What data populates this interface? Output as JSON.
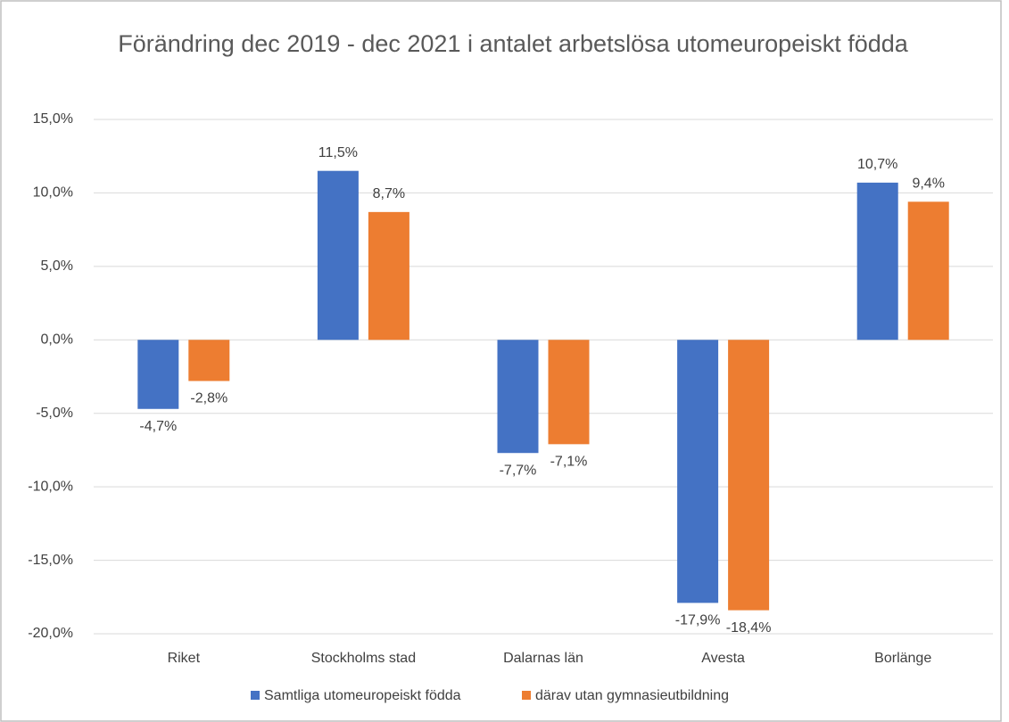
{
  "chart_data": {
    "type": "bar",
    "title": "Förändring dec 2019 - dec 2021 i antalet arbetslösa utomeuropeiskt födda",
    "categories": [
      "Riket",
      "Stockholms stad",
      "Dalarnas län",
      "Avesta",
      "Borlänge"
    ],
    "series": [
      {
        "name": "Samtliga utomeuropeiskt födda",
        "color": "#4472c4",
        "values": [
          -4.7,
          11.5,
          -7.7,
          -17.9,
          10.7
        ],
        "value_labels": [
          "-4,7%",
          "11,5%",
          "-7,7%",
          "-17,9%",
          "10,7%"
        ]
      },
      {
        "name": "därav utan gymnasieutbildning",
        "color": "#ed7d31",
        "values": [
          -2.8,
          8.7,
          -7.1,
          -18.4,
          9.4
        ],
        "value_labels": [
          "-2,8%",
          "8,7%",
          "-7,1%",
          "-18,4%",
          "9,4%"
        ]
      }
    ],
    "ylim": [
      -20,
      15
    ],
    "yticks": [
      {
        "value": -20,
        "label": "-20,0%"
      },
      {
        "value": -15,
        "label": "-15,0%"
      },
      {
        "value": -10,
        "label": "-10,0%"
      },
      {
        "value": -5,
        "label": "-5,0%"
      },
      {
        "value": 0,
        "label": "0,0%"
      },
      {
        "value": 5,
        "label": "5,0%"
      },
      {
        "value": 10,
        "label": "10,0%"
      },
      {
        "value": 15,
        "label": "15,0%"
      }
    ],
    "grid": true,
    "legend": "bottom"
  }
}
